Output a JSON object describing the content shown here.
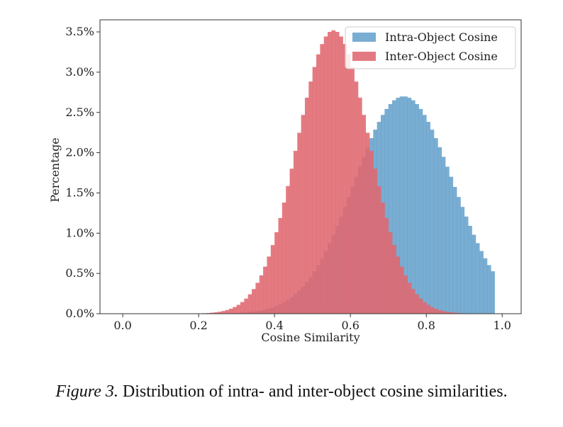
{
  "chart_data": {
    "type": "histogram",
    "title": "",
    "xlabel": "Cosine Similarity",
    "ylabel": "Percentage",
    "xlim": [
      -0.06,
      1.05
    ],
    "ylim": [
      0,
      3.65
    ],
    "xticks": [
      0.0,
      0.2,
      0.4,
      0.6,
      0.8,
      1.0
    ],
    "xtick_labels": [
      "0.0",
      "0.2",
      "0.4",
      "0.6",
      "0.8",
      "1.0"
    ],
    "yticks": [
      0,
      0.5,
      1.0,
      1.5,
      2.0,
      2.5,
      3.0,
      3.5
    ],
    "ytick_labels": [
      "0.0%",
      "0.5%",
      "1.0%",
      "1.5%",
      "2.0%",
      "2.5%",
      "3.0%",
      "3.5%"
    ],
    "legend_position": "top-right",
    "grid": false,
    "bin_width": 0.01,
    "series": [
      {
        "name": "Intra-Object Cosine",
        "color": "#5b9bc8",
        "mean": 0.74,
        "sd": 0.13,
        "peak": 2.7,
        "min": 0.12,
        "max": 0.98
      },
      {
        "name": "Inter-Object Cosine",
        "color": "#e06870",
        "mean": 0.555,
        "sd": 0.095,
        "peak": 3.52,
        "min": 0.12,
        "max": 0.9
      }
    ]
  },
  "caption": {
    "label": "Figure 3.",
    "text": "Distribution of intra- and inter-object cosine similarities."
  }
}
